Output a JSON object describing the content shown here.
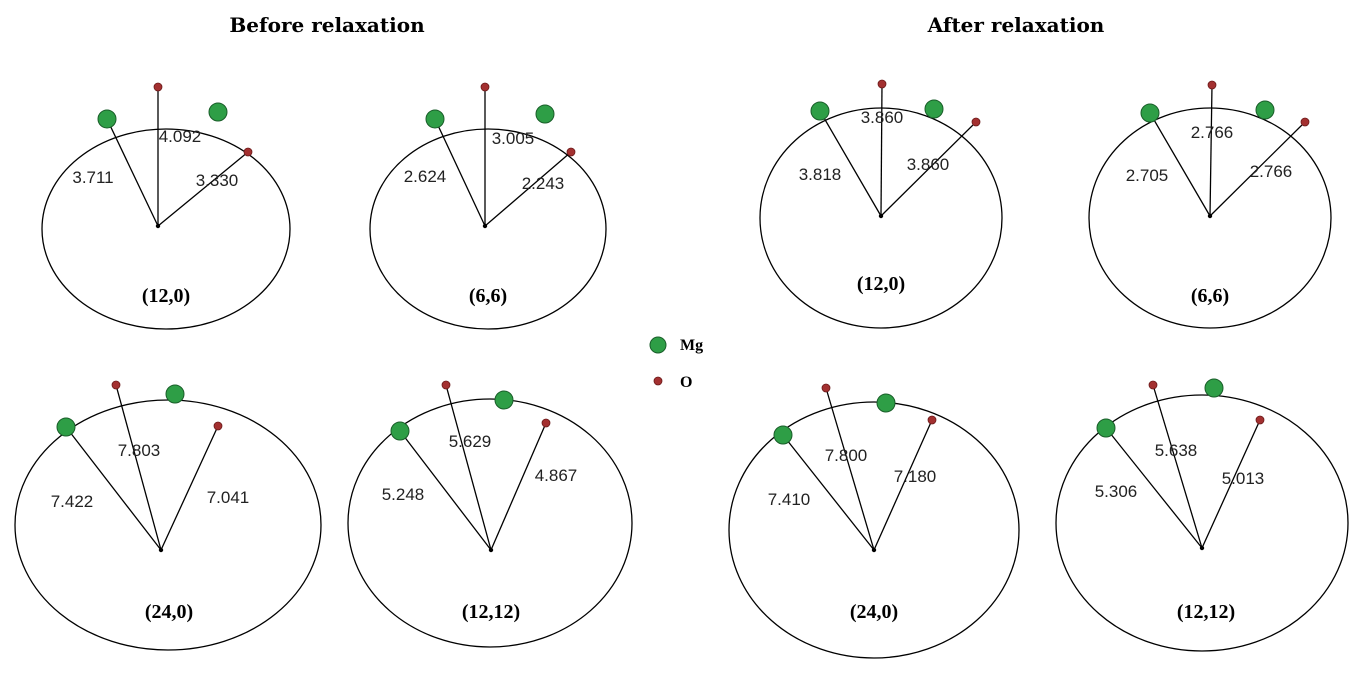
{
  "sections": {
    "before_title": "Before relaxation",
    "after_title": "After relaxation"
  },
  "colors": {
    "mg": "#2e9e46",
    "o": "#a33030",
    "line": "#000000"
  },
  "legend": {
    "mg_label": "Mg",
    "o_label": "O"
  },
  "tubes": [
    {
      "id": "before-12-0",
      "label": "(12,0)",
      "distances": [
        "3.711",
        "4.092",
        "3.330"
      ]
    },
    {
      "id": "before-6-6",
      "label": "(6,6)",
      "distances": [
        "2.624",
        "3.005",
        "2.243"
      ]
    },
    {
      "id": "before-24-0",
      "label": "(24,0)",
      "distances": [
        "7.422",
        "7.803",
        "7.041"
      ]
    },
    {
      "id": "before-12-12",
      "label": "(12,12)",
      "distances": [
        "5.248",
        "5.629",
        "4.867"
      ]
    },
    {
      "id": "after-12-0",
      "label": "(12,0)",
      "distances": [
        "3.818",
        "3.860",
        "3.860"
      ]
    },
    {
      "id": "after-6-6",
      "label": "(6,6)",
      "distances": [
        "2.705",
        "2.766",
        "2.766"
      ]
    },
    {
      "id": "after-24-0",
      "label": "(24,0)",
      "distances": [
        "7.410",
        "7.800",
        "7.180"
      ]
    },
    {
      "id": "after-12-12",
      "label": "(12,12)",
      "distances": [
        "5.306",
        "5.638",
        "5.013"
      ]
    }
  ]
}
